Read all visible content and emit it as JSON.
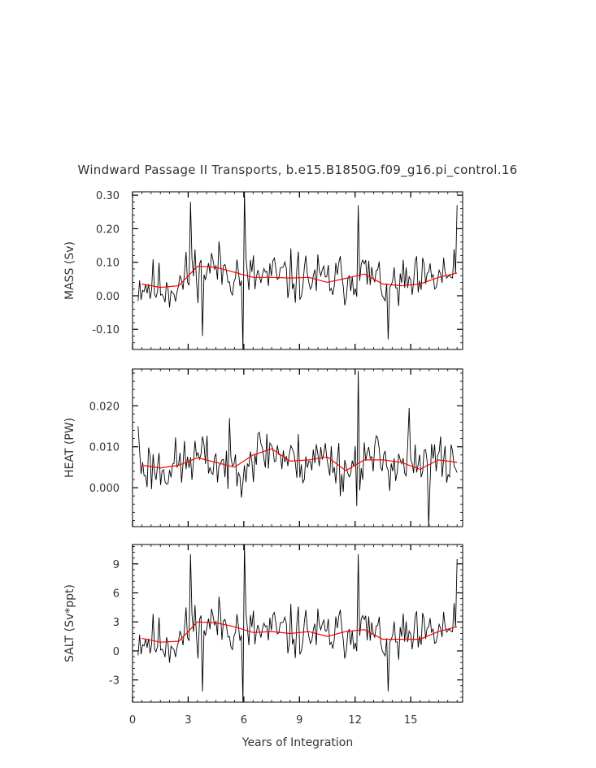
{
  "title": "Windward Passage II Transports, b.e15.B1850G.f09_g16.pi_control.16",
  "xlabel": "Years of Integration",
  "x_ticks": [
    "0",
    "3",
    "6",
    "9",
    "12",
    "15"
  ],
  "colors": {
    "raw": "#000000",
    "smooth": "#ff0000",
    "text": "#333333"
  },
  "chart_data": [
    {
      "type": "line",
      "ylabel": "MASS (Sv)",
      "xlim": [
        0,
        17.8
      ],
      "ylim": [
        -0.16,
        0.31
      ],
      "yticks": [
        -0.1,
        0.0,
        0.1,
        0.2,
        0.3
      ],
      "ytick_labels": [
        "-0.10",
        "0.00",
        "0.10",
        "0.20",
        "0.30"
      ],
      "spikes": [
        [
          3.1,
          0.28
        ],
        [
          3.8,
          -0.12
        ],
        [
          6.0,
          0.33
        ],
        [
          6.0,
          -0.16
        ],
        [
          12.2,
          0.27
        ],
        [
          13.8,
          -0.13
        ],
        [
          17.5,
          0.27
        ]
      ],
      "smooth": {
        "x": [
          0.5,
          1.5,
          2.5,
          3.5,
          4.5,
          5.5,
          6.5,
          7.5,
          8.5,
          9.5,
          10.5,
          11.5,
          12.5,
          13.5,
          14.5,
          15.5,
          16.5,
          17.5
        ],
        "y": [
          0.035,
          0.025,
          0.03,
          0.088,
          0.085,
          0.07,
          0.055,
          0.055,
          0.053,
          0.055,
          0.04,
          0.052,
          0.065,
          0.035,
          0.03,
          0.035,
          0.055,
          0.068
        ]
      }
    },
    {
      "type": "line",
      "ylabel": "HEAT (PW)",
      "xlim": [
        0,
        17.8
      ],
      "ylim": [
        -0.0095,
        0.029
      ],
      "yticks": [
        0.0,
        0.01,
        0.02
      ],
      "ytick_labels": [
        "0.000",
        "0.010",
        "0.020"
      ],
      "spikes": [
        [
          0.3,
          0.015
        ],
        [
          5.2,
          0.017
        ],
        [
          12.2,
          0.0285
        ],
        [
          12.1,
          -0.0045
        ],
        [
          14.9,
          0.0195
        ],
        [
          16.0,
          -0.0095
        ]
      ],
      "smooth": {
        "x": [
          0.5,
          1.5,
          2.5,
          3.5,
          4.5,
          5.5,
          6.5,
          7.5,
          8.5,
          9.5,
          10.5,
          11.5,
          12.5,
          13.5,
          14.5,
          15.5,
          16.5,
          17.5
        ],
        "y": [
          0.0055,
          0.0048,
          0.0055,
          0.0073,
          0.0062,
          0.005,
          0.008,
          0.0095,
          0.0065,
          0.0068,
          0.0075,
          0.0042,
          0.0068,
          0.0068,
          0.0062,
          0.0045,
          0.0068,
          0.0062
        ]
      }
    },
    {
      "type": "line",
      "ylabel": "SALT (Sv*ppt)",
      "xlim": [
        0,
        17.8
      ],
      "ylim": [
        -5.3,
        11.0
      ],
      "yticks": [
        -3,
        0,
        3,
        6,
        9
      ],
      "ytick_labels": [
        "-3",
        "0",
        "3",
        "6",
        "9"
      ],
      "spikes": [
        [
          3.1,
          10.0
        ],
        [
          3.8,
          -4.2
        ],
        [
          6.0,
          11.0
        ],
        [
          6.0,
          -5.3
        ],
        [
          12.2,
          10.0
        ],
        [
          13.8,
          -4.2
        ],
        [
          17.5,
          9.5
        ]
      ],
      "smooth": {
        "x": [
          0.5,
          1.5,
          2.5,
          3.5,
          4.5,
          5.5,
          6.5,
          7.5,
          8.5,
          9.5,
          10.5,
          11.5,
          12.5,
          13.5,
          14.5,
          15.5,
          16.5,
          17.5
        ],
        "y": [
          1.3,
          0.9,
          1.0,
          3.0,
          2.9,
          2.5,
          1.9,
          2.0,
          1.8,
          2.0,
          1.5,
          2.0,
          2.2,
          1.2,
          1.2,
          1.2,
          2.0,
          2.5
        ]
      }
    }
  ]
}
